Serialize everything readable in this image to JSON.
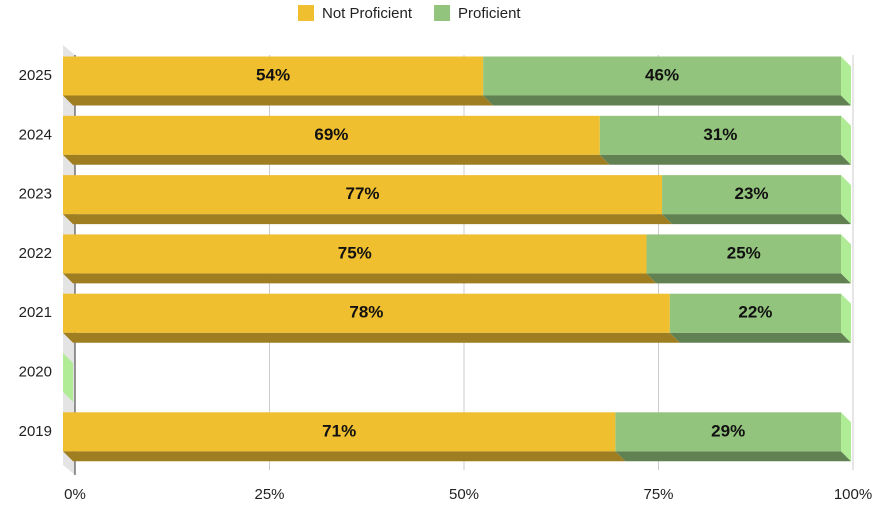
{
  "chart_data": {
    "type": "stacked_bar_horizontal",
    "categories": [
      "2025",
      "2024",
      "2023",
      "2022",
      "2021",
      "2020",
      "2019"
    ],
    "series": [
      {
        "name": "Not Proficient",
        "color": "#f0bf30",
        "values": [
          54,
          69,
          77,
          75,
          78,
          null,
          71
        ],
        "value_labels": [
          "54%",
          "69%",
          "77%",
          "75%",
          "78%",
          null,
          "71%"
        ]
      },
      {
        "name": "Proficient",
        "color": "#93c47d",
        "values": [
          46,
          31,
          23,
          25,
          22,
          null,
          29
        ],
        "value_labels": [
          "46%",
          "31%",
          "23%",
          "25%",
          "22%",
          null,
          "29%"
        ]
      }
    ],
    "xlim": [
      0,
      100
    ],
    "xticks": [
      {
        "value": 0,
        "label": "0%"
      },
      {
        "value": 25,
        "label": "25%"
      },
      {
        "value": 50,
        "label": "50%"
      },
      {
        "value": 75,
        "label": "75%"
      },
      {
        "value": 100,
        "label": "100%"
      }
    ],
    "grid": true,
    "legend": "top"
  }
}
